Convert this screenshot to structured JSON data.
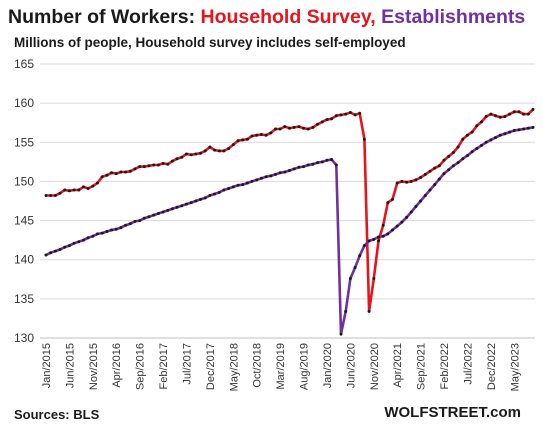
{
  "title": {
    "prefix": "Number of Workers: ",
    "part1": "Household  Survey,",
    "part2": " Establishments",
    "color_prefix": "#1a1a1a",
    "color_part1": "#e8141c",
    "color_part2": "#7030a0"
  },
  "subtitle": "Millions of people, Household survey includes self-employed",
  "footer": {
    "source": "Sources: BLS",
    "brand": "WOLFSTREET.com"
  },
  "chart_data": {
    "type": "line",
    "ylim": [
      130,
      165
    ],
    "yticks": [
      130,
      135,
      140,
      145,
      150,
      155,
      160,
      165
    ],
    "grid": true,
    "xtick_labels": [
      "Jan/2015",
      "Jun/2015",
      "Nov/2015",
      "Apr/2016",
      "Sep/2016",
      "Feb/2017",
      "Jul/2017",
      "Dec/2017",
      "May/2018",
      "Oct/2018",
      "Mar/2019",
      "Aug/2019",
      "Jan/2020",
      "Jun/2020",
      "Nov/2020",
      "Apr/2021",
      "Sep/2021",
      "Feb/2022",
      "Jul/2022",
      "Dec/2022",
      "May/2023"
    ],
    "x_start": "Jan/2015",
    "n_points": 105,
    "series": [
      {
        "name": "Household Survey",
        "color": "#e8141c",
        "values": [
          148.2,
          148.2,
          148.2,
          148.5,
          148.9,
          148.8,
          148.9,
          148.9,
          149.3,
          149.1,
          149.4,
          149.8,
          150.6,
          150.8,
          151.1,
          151.0,
          151.2,
          151.2,
          151.3,
          151.6,
          151.9,
          151.9,
          152.0,
          152.1,
          152.1,
          152.3,
          152.2,
          152.6,
          152.9,
          153.1,
          153.5,
          153.4,
          153.5,
          153.6,
          153.9,
          154.4,
          154.0,
          153.9,
          153.9,
          154.2,
          154.7,
          155.2,
          155.3,
          155.4,
          155.8,
          155.9,
          156.0,
          155.9,
          156.2,
          156.7,
          156.7,
          157.0,
          156.8,
          156.9,
          157.0,
          156.8,
          156.7,
          156.9,
          157.3,
          157.6,
          157.9,
          158.0,
          158.4,
          158.5,
          158.6,
          158.8,
          158.5,
          158.7,
          155.4,
          133.4,
          137.6,
          142.4,
          144.4,
          147.3,
          147.7,
          149.8,
          150.0,
          149.9,
          150.0,
          150.2,
          150.5,
          150.9,
          151.3,
          151.7,
          152.0,
          152.7,
          153.2,
          153.7,
          154.4,
          155.4,
          155.9,
          156.3,
          157.1,
          157.6,
          158.3,
          158.6,
          158.4,
          158.2,
          158.3,
          158.6,
          158.9,
          158.9,
          158.6,
          158.6,
          159.2
        ]
      },
      {
        "name": "Establishments",
        "color": "#7030a0",
        "values": [
          140.6,
          140.9,
          141.1,
          141.3,
          141.6,
          141.8,
          142.1,
          142.3,
          142.5,
          142.8,
          143.0,
          143.3,
          143.4,
          143.6,
          143.8,
          143.9,
          144.1,
          144.4,
          144.6,
          144.9,
          145.0,
          145.3,
          145.5,
          145.7,
          145.9,
          146.1,
          146.3,
          146.5,
          146.7,
          146.9,
          147.1,
          147.3,
          147.5,
          147.7,
          147.9,
          148.2,
          148.4,
          148.6,
          148.9,
          149.1,
          149.3,
          149.5,
          149.6,
          149.8,
          150.0,
          150.2,
          150.4,
          150.6,
          150.7,
          150.9,
          151.1,
          151.2,
          151.4,
          151.6,
          151.8,
          151.9,
          152.1,
          152.2,
          152.4,
          152.5,
          152.7,
          152.8,
          152.1,
          130.5,
          133.4,
          137.6,
          139.0,
          140.5,
          141.8,
          142.4,
          142.6,
          142.9,
          143.0,
          143.3,
          143.8,
          144.3,
          144.8,
          145.4,
          146.1,
          146.8,
          147.5,
          148.2,
          148.9,
          149.6,
          150.3,
          151.0,
          151.5,
          152.0,
          152.4,
          152.9,
          153.3,
          153.8,
          154.2,
          154.6,
          155.0,
          155.3,
          155.6,
          155.9,
          156.1,
          156.3,
          156.5,
          156.6,
          156.7,
          156.8,
          156.9
        ]
      }
    ]
  }
}
